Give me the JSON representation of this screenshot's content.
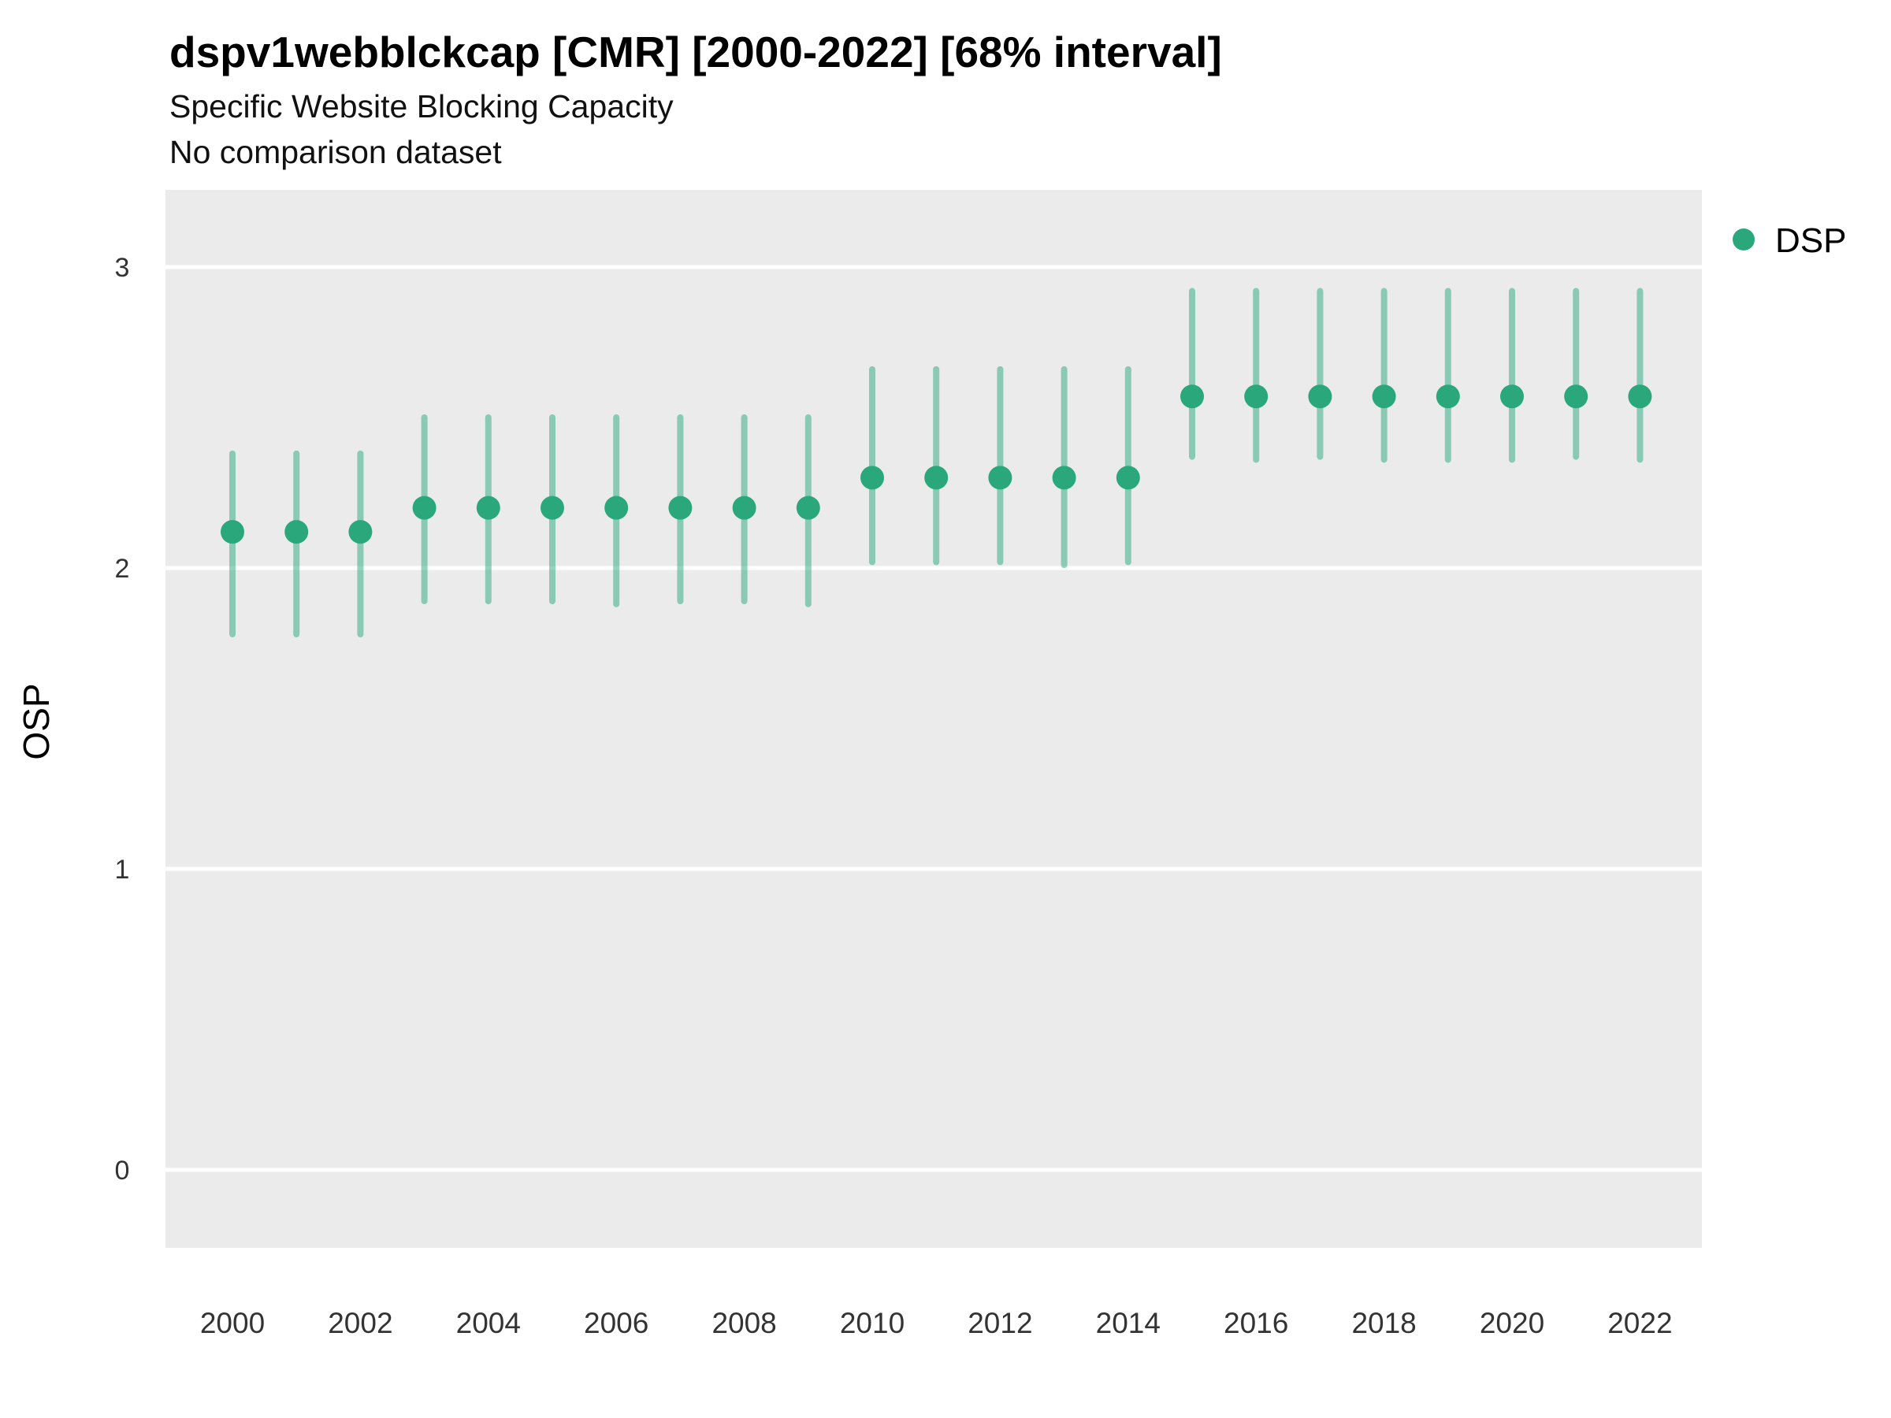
{
  "header": {
    "title": "dspv1webblckcap [CMR] [2000-2022] [68% interval]",
    "subtitle": "Specific Website Blocking Capacity",
    "comparison_note": "No comparison dataset"
  },
  "legend": {
    "label": "DSP"
  },
  "axes": {
    "y_label": "OSP",
    "x_label": "",
    "y_ticks": [
      0,
      1,
      2,
      3
    ],
    "x_ticks": [
      2000,
      2002,
      2004,
      2006,
      2008,
      2010,
      2012,
      2014,
      2016,
      2018,
      2020,
      2022
    ]
  },
  "colors": {
    "point": "#2aa87c",
    "interval": "#2aa87c",
    "interval_opacity": 0.5,
    "panel_background": "#EBEBEB",
    "gridline": "#FFFFFF",
    "tick_text": "#333333",
    "title_text": "#000000"
  },
  "chart_data": {
    "type": "scatter",
    "title": "dspv1webblckcap [CMR] [2000-2022] [68% interval]",
    "subtitle": "Specific Website Blocking Capacity",
    "annotation": "No comparison dataset",
    "xlabel": "",
    "ylabel": "OSP",
    "interval_level": "68%",
    "legend_position": "right",
    "grid": true,
    "xlim": [
      1998.9,
      2023.1
    ],
    "ylim": [
      -0.26,
      3.26
    ],
    "x": [
      2000,
      2001,
      2002,
      2003,
      2004,
      2005,
      2006,
      2007,
      2008,
      2009,
      2010,
      2011,
      2012,
      2013,
      2014,
      2015,
      2016,
      2017,
      2018,
      2019,
      2020,
      2021,
      2022
    ],
    "series": [
      {
        "name": "DSP",
        "y": [
          2.12,
          2.12,
          2.12,
          2.2,
          2.2,
          2.2,
          2.2,
          2.2,
          2.2,
          2.2,
          2.3,
          2.3,
          2.3,
          2.3,
          2.3,
          2.57,
          2.57,
          2.57,
          2.57,
          2.57,
          2.57,
          2.57,
          2.57
        ],
        "y_lo": [
          1.78,
          1.78,
          1.78,
          1.89,
          1.89,
          1.89,
          1.88,
          1.89,
          1.89,
          1.88,
          2.02,
          2.02,
          2.02,
          2.01,
          2.02,
          2.37,
          2.36,
          2.37,
          2.36,
          2.36,
          2.36,
          2.37,
          2.36
        ],
        "y_hi": [
          2.38,
          2.38,
          2.38,
          2.5,
          2.5,
          2.5,
          2.5,
          2.5,
          2.5,
          2.5,
          2.66,
          2.66,
          2.66,
          2.66,
          2.66,
          2.92,
          2.92,
          2.92,
          2.92,
          2.92,
          2.92,
          2.92,
          2.92
        ]
      }
    ]
  }
}
